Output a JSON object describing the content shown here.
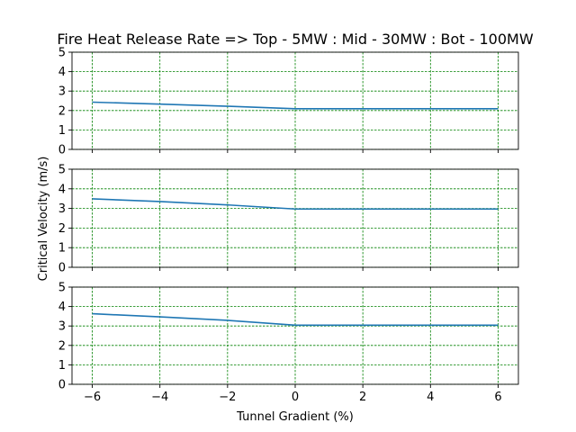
{
  "figure": {
    "title": "Fire Heat Release Rate => Top - 5MW : Mid - 30MW : Bot - 100MW",
    "xlabel": "Tunnel Gradient (%)",
    "ylabel": "Critical Velocity (m/s)"
  },
  "colors": {
    "line": "#1f77b4",
    "grid": "#008000",
    "axes": "#000000",
    "background": "#ffffff"
  },
  "chart_data": [
    {
      "type": "line",
      "panel": "top",
      "title": "Fire Heat Release Rate => Top - 5MW : Mid - 30MW : Bot - 100MW",
      "xlabel": "",
      "ylabel": "",
      "x": [
        -6,
        -4,
        -2,
        0,
        2,
        4,
        6
      ],
      "series": [
        {
          "values": [
            2.43,
            2.33,
            2.22,
            2.09,
            2.09,
            2.09,
            2.09
          ]
        }
      ],
      "xlim": [
        -6.6,
        6.6
      ],
      "ylim": [
        0,
        5
      ],
      "xticks": [
        -6,
        -4,
        -2,
        0,
        2,
        4,
        6
      ],
      "xticklabels": [
        "",
        "",
        "",
        "",
        "",
        "",
        ""
      ],
      "yticks": [
        0,
        1,
        2,
        3,
        4,
        5
      ],
      "yticklabels": [
        "0",
        "1",
        "2",
        "3",
        "4",
        "5"
      ],
      "grid": true
    },
    {
      "type": "line",
      "panel": "middle",
      "xlabel": "",
      "ylabel": "Critical Velocity (m/s)",
      "x": [
        -6,
        -4,
        -2,
        0,
        2,
        4,
        6
      ],
      "series": [
        {
          "values": [
            3.49,
            3.35,
            3.18,
            2.97,
            2.97,
            2.97,
            2.97
          ]
        }
      ],
      "xlim": [
        -6.6,
        6.6
      ],
      "ylim": [
        0,
        5
      ],
      "xticks": [
        -6,
        -4,
        -2,
        0,
        2,
        4,
        6
      ],
      "xticklabels": [
        "",
        "",
        "",
        "",
        "",
        "",
        ""
      ],
      "yticks": [
        0,
        1,
        2,
        3,
        4,
        5
      ],
      "yticklabels": [
        "0",
        "1",
        "2",
        "3",
        "4",
        "5"
      ],
      "grid": true
    },
    {
      "type": "line",
      "panel": "bottom",
      "xlabel": "Tunnel Gradient (%)",
      "ylabel": "",
      "x": [
        -6,
        -4,
        -2,
        0,
        2,
        4,
        6
      ],
      "series": [
        {
          "values": [
            3.63,
            3.47,
            3.29,
            3.04,
            3.04,
            3.04,
            3.04
          ]
        }
      ],
      "xlim": [
        -6.6,
        6.6
      ],
      "ylim": [
        0,
        5
      ],
      "xticks": [
        -6,
        -4,
        -2,
        0,
        2,
        4,
        6
      ],
      "xticklabels": [
        "−6",
        "−4",
        "−2",
        "0",
        "2",
        "4",
        "6"
      ],
      "yticks": [
        0,
        1,
        2,
        3,
        4,
        5
      ],
      "yticklabels": [
        "0",
        "1",
        "2",
        "3",
        "4",
        "5"
      ],
      "grid": true
    }
  ]
}
